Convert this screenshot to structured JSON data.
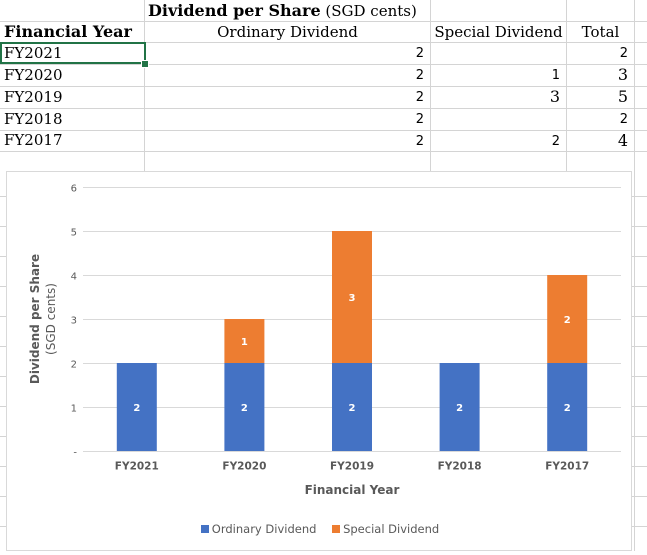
{
  "sheet": {
    "title_bold": "Dividend per Share",
    "title_rest": " (SGD cents)",
    "headers": [
      "Financial Year",
      "Ordinary Dividend",
      "Special Dividend",
      "Total"
    ],
    "rows": [
      {
        "year": "FY2021",
        "ordinary": "2",
        "special": "",
        "total": "2"
      },
      {
        "year": "FY2020",
        "ordinary": "2",
        "special": "1",
        "total": "3"
      },
      {
        "year": "FY2019",
        "ordinary": "2",
        "special": "3",
        "total": "5"
      },
      {
        "year": "FY2018",
        "ordinary": "2",
        "special": "",
        "total": "2"
      },
      {
        "year": "FY2017",
        "ordinary": "2",
        "special": "2",
        "total": "4"
      }
    ]
  },
  "chart_data": {
    "type": "bar",
    "stacked": true,
    "categories": [
      "FY2021",
      "FY2020",
      "FY2019",
      "FY2018",
      "FY2017"
    ],
    "series": [
      {
        "name": "Ordinary Dividend",
        "values": [
          2,
          2,
          2,
          2,
          2
        ],
        "color": "#4472c4"
      },
      {
        "name": "Special Dividend",
        "values": [
          0,
          1,
          3,
          0,
          2
        ],
        "color": "#ed7d31"
      }
    ],
    "title": "",
    "xlabel": "Financial Year",
    "ylabel": "Dividend per Share",
    "ylabel_sub": "(SGD cents)",
    "ylim": [
      0,
      6
    ],
    "yticks": [
      1,
      2,
      3,
      4,
      5,
      6
    ],
    "bottom_tick_label": "-",
    "grid": true,
    "legend_position": "bottom"
  }
}
